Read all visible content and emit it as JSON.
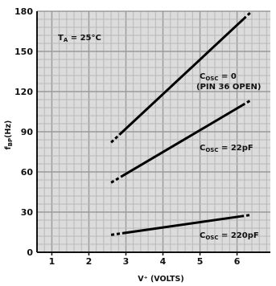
{
  "chart_data": {
    "type": "line",
    "ylabel_parts": {
      "main": "f",
      "sub": "BP",
      "unit": "(Hz)"
    },
    "xlabel": "V⁺ (VOLTS)",
    "xlim": [
      0.6,
      6.9
    ],
    "ylim": [
      0,
      180
    ],
    "x_ticks": [
      1,
      2,
      3,
      4,
      5,
      6
    ],
    "y_ticks": [
      0,
      30,
      60,
      90,
      120,
      150,
      180
    ],
    "grid": true,
    "annotation_ta": {
      "main": "T",
      "sub": "A",
      "rest": " = 25°C"
    },
    "series": [
      {
        "label_main": "C",
        "label_sub": "OSC",
        "label_rest": " = 0",
        "label_line2": "(PIN 36 OPEN)",
        "points": [
          [
            2.6,
            82
          ],
          [
            6.4,
            180
          ]
        ]
      },
      {
        "label_main": "C",
        "label_sub": "OSC",
        "label_rest": " = 22pF",
        "points": [
          [
            2.6,
            52
          ],
          [
            6.4,
            114
          ]
        ]
      },
      {
        "label_main": "C",
        "label_sub": "OSC",
        "label_rest": " = 220pF",
        "points": [
          [
            2.6,
            13
          ],
          [
            6.4,
            28
          ]
        ]
      }
    ]
  }
}
